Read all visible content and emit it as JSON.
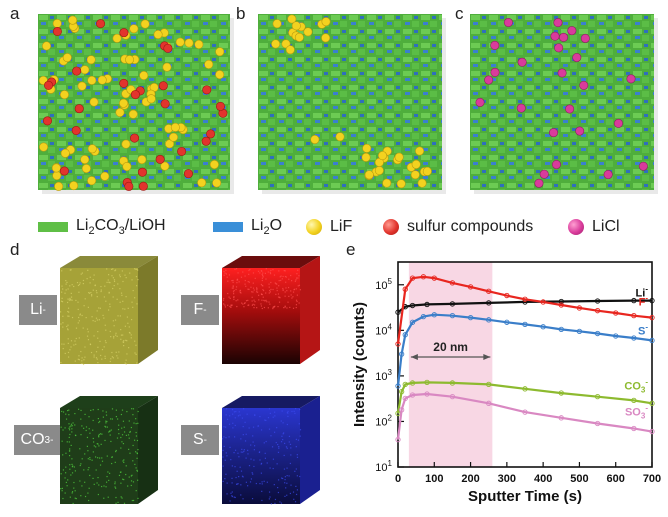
{
  "panels": {
    "a": "a",
    "b": "b",
    "c": "c",
    "d": "d",
    "e": "e"
  },
  "legend": {
    "items": [
      {
        "main": "Li",
        "sub": "2",
        "rest": "CO",
        "sub2": "3",
        "tail": "/LiOH",
        "color": "#5fbf46"
      },
      {
        "main": "Li",
        "sub": "2",
        "rest": "O",
        "sub2": "",
        "tail": "",
        "color": "#3a8fd8"
      },
      {
        "label": "LiF",
        "color": "#f3d21f"
      },
      {
        "label": "sulfur compounds",
        "color": "#e2342d"
      },
      {
        "label": "LiCl",
        "color": "#d93b9b"
      }
    ]
  },
  "cubes": [
    {
      "ion": "Li",
      "charge": "-",
      "sub": "",
      "color": "#b7b23a"
    },
    {
      "ion": "F",
      "charge": "-",
      "sub": "",
      "color": "#e0161a"
    },
    {
      "ion": "CO",
      "charge": "-",
      "sub": "3",
      "color": "#3f9a32"
    },
    {
      "ion": "S",
      "charge": "-",
      "sub": "",
      "color": "#2734c8"
    }
  ],
  "chart_data": {
    "type": "line",
    "xlabel": "Sputter Time (s)",
    "ylabel": "Intensity (counts)",
    "xlim": [
      0,
      700
    ],
    "ylim_log10": [
      1,
      5.5
    ],
    "yscale": "log",
    "x_ticks": [
      "0",
      "100",
      "200",
      "300",
      "400",
      "500",
      "600",
      "700"
    ],
    "y_ticks": [
      {
        "base": "10",
        "exp": "1"
      },
      {
        "base": "10",
        "exp": "2"
      },
      {
        "base": "10",
        "exp": "3"
      },
      {
        "base": "10",
        "exp": "4"
      },
      {
        "base": "10",
        "exp": "5"
      }
    ],
    "shaded_region": {
      "x_start": 30,
      "x_end": 260,
      "label": "20 nm",
      "color": "#f5cadb"
    },
    "series": [
      {
        "name": "Li",
        "charge": "-",
        "sub": "",
        "color": "#111111",
        "x": [
          0,
          20,
          40,
          80,
          150,
          250,
          350,
          450,
          550,
          650,
          700
        ],
        "y": [
          25000,
          33000,
          35000,
          37000,
          38000,
          40000,
          42000,
          43000,
          44000,
          45000,
          45000
        ]
      },
      {
        "name": "F",
        "charge": "-",
        "sub": "",
        "color": "#e8261f",
        "x": [
          0,
          20,
          40,
          70,
          100,
          150,
          200,
          250,
          300,
          350,
          400,
          450,
          500,
          550,
          600,
          650,
          700
        ],
        "y": [
          5000,
          80000,
          140000,
          150000,
          140000,
          110000,
          90000,
          72000,
          58000,
          48000,
          42000,
          36000,
          31000,
          27000,
          24000,
          21000,
          19000
        ]
      },
      {
        "name": "S",
        "charge": "-",
        "sub": "",
        "color": "#3a7ec9",
        "x": [
          0,
          10,
          20,
          40,
          70,
          100,
          150,
          200,
          250,
          300,
          350,
          400,
          450,
          500,
          550,
          600,
          650,
          700
        ],
        "y": [
          600,
          3000,
          8000,
          15000,
          20000,
          22000,
          21000,
          19000,
          17000,
          15000,
          13500,
          12000,
          10500,
          9500,
          8500,
          7500,
          6800,
          6000
        ]
      },
      {
        "name": "CO",
        "charge": "-",
        "sub": "3",
        "color": "#8dba2f",
        "x": [
          0,
          10,
          20,
          40,
          80,
          150,
          250,
          350,
          450,
          550,
          650,
          700
        ],
        "y": [
          150,
          450,
          650,
          700,
          720,
          700,
          650,
          520,
          420,
          350,
          290,
          250
        ]
      },
      {
        "name": "SO",
        "charge": "-",
        "sub": "3",
        "color": "#d988c2",
        "x": [
          0,
          10,
          20,
          40,
          80,
          150,
          250,
          350,
          450,
          550,
          650,
          700
        ],
        "y": [
          40,
          180,
          320,
          380,
          400,
          350,
          250,
          160,
          120,
          90,
          70,
          60
        ]
      }
    ]
  }
}
